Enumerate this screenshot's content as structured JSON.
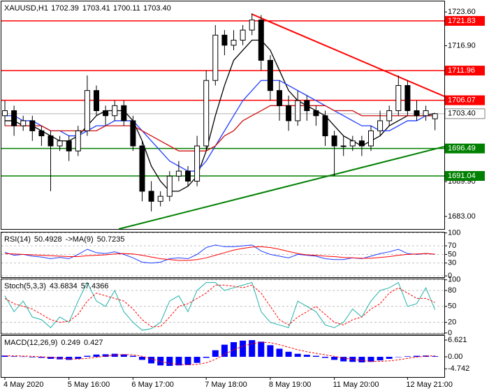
{
  "chart_data": [
    {
      "type": "candlestick",
      "title": "XAUUSD,H1",
      "categories": [
        "4 May 2020",
        null,
        null,
        null,
        null,
        null,
        null,
        "5 May 16:00",
        null,
        null,
        null,
        null,
        null,
        null,
        "6 May 17:00",
        null,
        null,
        null,
        null,
        null,
        null,
        null,
        "7 May 18:00",
        null,
        null,
        null,
        null,
        null,
        null,
        "8 May 19:00",
        null,
        null,
        null,
        null,
        null,
        null,
        "11 May 20:00",
        null,
        null,
        null,
        null,
        null,
        null,
        null,
        "12 May 21:00",
        null,
        null,
        null
      ],
      "open": [
        1703,
        1704,
        1701,
        1702,
        1700,
        1699,
        1697,
        1698,
        1696,
        1700,
        1708,
        1704,
        1703,
        1705,
        1702,
        1697,
        1688,
        1686,
        1687,
        1691,
        1692,
        1690,
        1697,
        1710,
        1719,
        1717,
        1718,
        1720,
        1722,
        1714,
        1708,
        1705,
        1702,
        1706,
        1704,
        1703,
        1699,
        1697,
        1697,
        1698,
        1697,
        1700,
        1702,
        1704,
        1709,
        1704,
        1703,
        1702.39
      ],
      "high": [
        1706,
        1705,
        1703,
        1703,
        1701,
        1700,
        1699,
        1699,
        1701,
        1711,
        1709,
        1705,
        1706,
        1706,
        1703,
        1698,
        1690,
        1688,
        1692,
        1694,
        1693,
        1699,
        1712,
        1721,
        1720,
        1720,
        1721,
        1723.3,
        1723,
        1715,
        1710,
        1707,
        1708,
        1707,
        1705,
        1704,
        1700,
        1699,
        1699,
        1699,
        1701,
        1704,
        1705,
        1711,
        1710,
        1706,
        1705,
        1703.41
      ],
      "low": [
        1701,
        1699,
        1700,
        1698,
        1697,
        1688,
        1696,
        1694,
        1695,
        1699,
        1703,
        1701,
        1702,
        1701,
        1696,
        1686,
        1684,
        1685,
        1686,
        1690,
        1689,
        1689,
        1696,
        1709,
        1715,
        1716,
        1717,
        1719,
        1712,
        1706,
        1702,
        1700,
        1701,
        1702,
        1701,
        1697,
        1691,
        1695,
        1696,
        1695,
        1696,
        1699,
        1701,
        1703,
        1703,
        1702,
        1702,
        1700.11
      ],
      "close": [
        1704,
        1701,
        1702,
        1700,
        1699,
        1697,
        1698,
        1696,
        1700,
        1708,
        1704,
        1703,
        1705,
        1702,
        1697,
        1688,
        1686,
        1687,
        1691,
        1692,
        1690,
        1697,
        1710,
        1719,
        1717,
        1718,
        1720,
        1722,
        1714,
        1708,
        1705,
        1702,
        1706,
        1704,
        1703,
        1699,
        1697,
        1697,
        1698,
        1697,
        1700,
        1702,
        1704,
        1709,
        1704,
        1703,
        1704,
        1703.4
      ],
      "overlays": [
        {
          "color": "#000000",
          "values": [
            1702,
            1702,
            1701,
            1701,
            1700,
            1699,
            1698,
            1698,
            1699,
            1701,
            1703,
            1704,
            1704,
            1704,
            1702,
            1698,
            1693,
            1690,
            1688,
            1688,
            1689,
            1691,
            1696,
            1703,
            1709,
            1714,
            1716,
            1718,
            1718,
            1716,
            1712,
            1708,
            1706,
            1705,
            1704,
            1703,
            1701,
            1699,
            1698,
            1697,
            1698,
            1699,
            1701,
            1702,
            1703,
            1703,
            1703,
            1703.5
          ]
        },
        {
          "color": "#1e3cff",
          "values": [
            1703,
            1703,
            1702,
            1702,
            1701,
            1700,
            1700,
            1699,
            1699,
            1700,
            1701,
            1701,
            1702,
            1702,
            1702,
            1700,
            1698,
            1696,
            1694,
            1693,
            1692,
            1692,
            1694,
            1697,
            1700,
            1703,
            1706,
            1708,
            1710,
            1710,
            1710,
            1709,
            1708,
            1707,
            1706,
            1705,
            1704,
            1703,
            1702,
            1701,
            1701,
            1700,
            1700,
            1701,
            1702,
            1702,
            1703,
            1703
          ]
        },
        {
          "color": "#d01010",
          "values": [
            1701,
            1701,
            1701,
            1701,
            1701,
            1700,
            1700,
            1700,
            1700,
            1700,
            1700,
            1701,
            1701,
            1701,
            1701,
            1700,
            1699,
            1698,
            1697,
            1696,
            1696,
            1696,
            1696,
            1697,
            1699,
            1700,
            1702,
            1703,
            1704,
            1705,
            1705,
            1705,
            1705,
            1705,
            1705,
            1705,
            1704,
            1704,
            1704,
            1703,
            1703,
            1703,
            1703,
            1703,
            1703,
            1703,
            1703,
            1703
          ]
        }
      ],
      "levels": [
        {
          "value": 1721.83,
          "color": "#ff0000"
        },
        {
          "value": 1711.96,
          "color": "#ff0000"
        },
        {
          "value": 1706.07,
          "color": "#ff0000"
        },
        {
          "value": 1696.49,
          "color": "#008000"
        },
        {
          "value": 1691.04,
          "color": "#008000"
        }
      ],
      "current_price": {
        "value": 1703.4,
        "label": "1703.40"
      },
      "ylim": [
        1680.5,
        1725.7
      ],
      "yticks": [
        {
          "value": 1723.6,
          "label": "1723.60"
        },
        {
          "value": 1716.9,
          "label": "1716.90"
        },
        {
          "value": 1689.9,
          "label": "1689.90"
        },
        {
          "value": 1683,
          "label": "1683.00"
        }
      ]
    },
    {
      "type": "line",
      "title": "RSI(14)",
      "ma_label": "->MA(9)",
      "series": [
        {
          "color": "#1e3cff",
          "values": [
            55,
            48,
            50,
            46,
            44,
            40,
            43,
            40,
            50,
            62,
            54,
            52,
            56,
            50,
            42,
            32,
            30,
            32,
            40,
            42,
            40,
            50,
            66,
            72,
            68,
            68,
            70,
            72,
            58,
            50,
            46,
            42,
            50,
            48,
            46,
            40,
            38,
            38,
            42,
            40,
            46,
            52,
            56,
            62,
            52,
            50,
            52,
            50.4928
          ]
        },
        {
          "color": "#ff0000",
          "values": [
            52,
            51,
            50,
            49,
            48,
            47,
            46,
            45,
            45,
            47,
            48,
            49,
            51,
            52,
            51,
            48,
            44,
            40,
            38,
            36,
            36,
            38,
            42,
            48,
            54,
            60,
            64,
            67,
            68,
            66,
            62,
            57,
            52,
            49,
            48,
            46,
            45,
            43,
            42,
            41,
            41,
            43,
            45,
            48,
            50,
            51,
            52,
            50.7235
          ]
        }
      ],
      "ylim": [
        -3,
        101
      ],
      "yticks": [
        100,
        70,
        50,
        30,
        0
      ]
    },
    {
      "type": "line",
      "title": "Stoch(5,3,3)",
      "series": [
        {
          "color": "#20b2aa",
          "values": [
            70,
            40,
            60,
            30,
            25,
            10,
            30,
            20,
            60,
            95,
            60,
            50,
            80,
            40,
            20,
            5,
            8,
            20,
            60,
            70,
            40,
            80,
            95,
            95,
            80,
            85,
            90,
            95,
            40,
            20,
            15,
            10,
            60,
            50,
            40,
            15,
            10,
            20,
            45,
            30,
            60,
            80,
            85,
            95,
            50,
            55,
            85,
            43.6834
          ]
        },
        {
          "color": "#ff0000",
          "dashed": true,
          "values": [
            65,
            55,
            50,
            45,
            35,
            25,
            20,
            22,
            35,
            60,
            75,
            70,
            65,
            60,
            45,
            25,
            12,
            12,
            30,
            50,
            55,
            65,
            75,
            90,
            90,
            88,
            85,
            90,
            75,
            50,
            25,
            15,
            30,
            40,
            50,
            35,
            20,
            15,
            25,
            30,
            45,
            55,
            75,
            85,
            75,
            65,
            65,
            57.4366
          ]
        }
      ],
      "ylim": [
        -1.5,
        101
      ],
      "yticks": [
        100,
        80,
        50,
        20,
        0
      ]
    },
    {
      "type": "bar",
      "title": "MACD(12,26,9)",
      "series": [
        {
          "type": "bar",
          "color": "#0000ff",
          "values": [
            0.5,
            0.2,
            0.1,
            -0.2,
            -0.4,
            -0.8,
            -1,
            -1.2,
            -0.8,
            0.4,
            0.9,
            1,
            1.2,
            1,
            0.4,
            -1.2,
            -2.6,
            -3.4,
            -3.6,
            -3.4,
            -3.2,
            -2.4,
            -0.4,
            2.6,
            4.8,
            5.8,
            6.4,
            6.6,
            6,
            4.6,
            3.2,
            2,
            1.2,
            0.8,
            0.4,
            -0.4,
            -1.2,
            -1.8,
            -2,
            -2.2,
            -2,
            -1.4,
            -0.8,
            0,
            0.2,
            0.4,
            0.5,
            0.249
          ]
        },
        {
          "type": "line",
          "color": "#ff0000",
          "dashed": true,
          "values": [
            0.4,
            0.4,
            0.3,
            0.2,
            0,
            -0.2,
            -0.5,
            -0.8,
            -0.9,
            -0.6,
            -0.2,
            0.3,
            0.7,
            0.9,
            0.8,
            0.2,
            -0.8,
            -1.8,
            -2.6,
            -3,
            -3.2,
            -3,
            -2.4,
            -1,
            1,
            2.8,
            4.2,
            5.2,
            5.8,
            5.6,
            4.8,
            3.8,
            2.8,
            2,
            1.4,
            0.8,
            0.2,
            -0.5,
            -1,
            -1.5,
            -1.8,
            -1.8,
            -1.6,
            -1.2,
            -0.6,
            -0.1,
            0.3,
            0.427
          ]
        }
      ],
      "ylim": [
        -8,
        8.3
      ],
      "yticks": [
        6.621,
        {
          "value": 0,
          "label": "0.00"
        },
        -4.742
      ]
    }
  ]
}
